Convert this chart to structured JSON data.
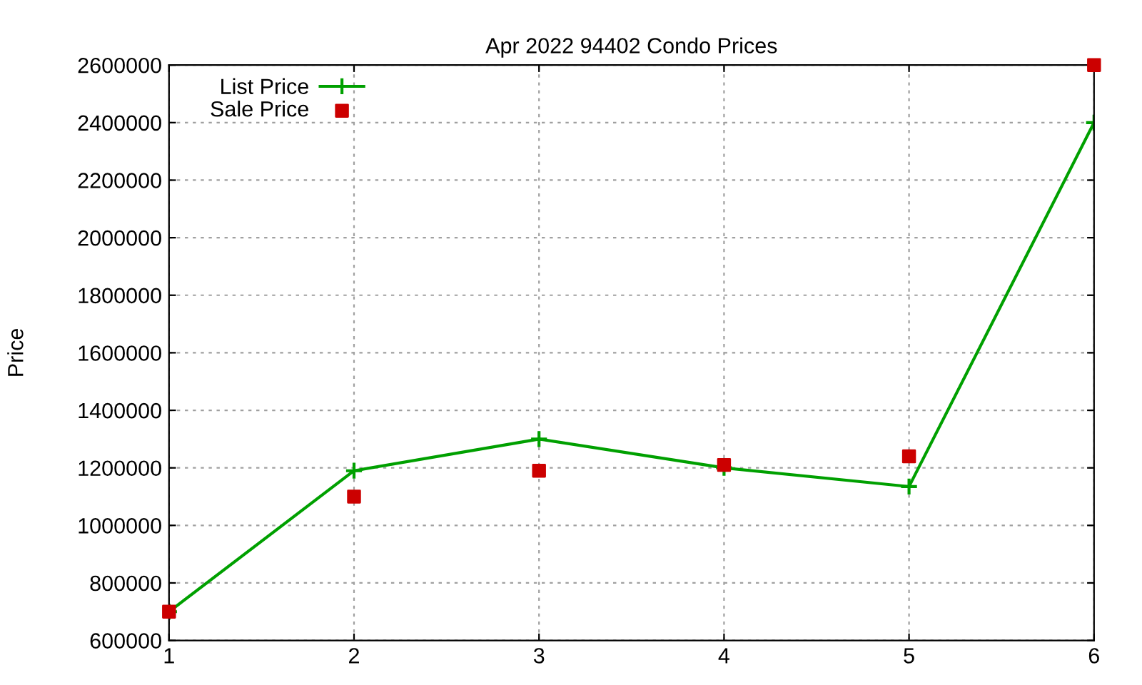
{
  "chart_data": {
    "type": "line",
    "title": "Apr 2022 94402 Condo Prices",
    "ylabel": "Price",
    "x": [
      1,
      2,
      3,
      4,
      5,
      6
    ],
    "series": [
      {
        "name": "List Price",
        "color": "#00a000",
        "marker": "cross",
        "values": [
          700000,
          1190000,
          1300000,
          1200000,
          1135000,
          2400000
        ]
      },
      {
        "name": "Sale Price",
        "color": "#cc0000",
        "type": "scatter",
        "marker": "square",
        "values": [
          700000,
          1100000,
          1190000,
          1210000,
          1240000,
          2600000
        ]
      }
    ],
    "xlim": [
      1,
      6
    ],
    "xticks": [
      1,
      2,
      3,
      4,
      5,
      6
    ],
    "ylim": [
      600000,
      2600000
    ],
    "yticks": [
      600000,
      800000,
      1000000,
      1200000,
      1400000,
      1600000,
      1800000,
      2000000,
      2200000,
      2400000,
      2600000
    ],
    "grid": true,
    "legend": "top left"
  }
}
